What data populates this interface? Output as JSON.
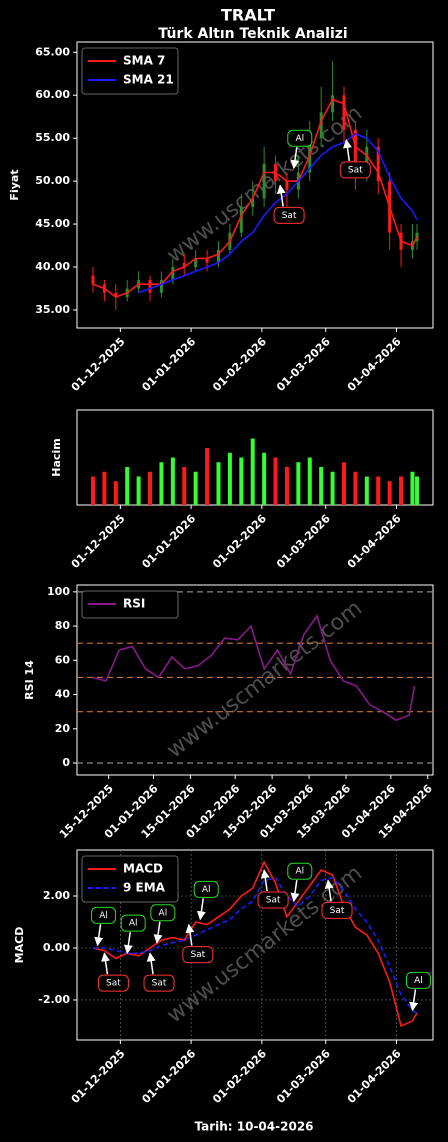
{
  "title": "TRALT",
  "subtitle": "Türk Altın Teknik Analizi",
  "footer": "Tarih: 10-04-2026",
  "watermark": "www.uscmarkets.com",
  "chart_data": [
    {
      "type": "candlestick",
      "y_label": "Fiyat",
      "legend": "upper left",
      "grid": false,
      "watermark": true,
      "up_color": "#2e8b2e",
      "down_color": "#ff1a1a",
      "x": [
        "19-11-2025",
        "24-11-2025",
        "29-11-2025",
        "04-12-2025",
        "09-12-2025",
        "14-12-2025",
        "19-12-2025",
        "24-12-2025",
        "29-12-2025",
        "03-01-2026",
        "08-01-2026",
        "13-01-2026",
        "18-01-2026",
        "23-01-2026",
        "28-01-2026",
        "02-02-2026",
        "07-02-2026",
        "12-02-2026",
        "17-02-2026",
        "22-02-2026",
        "27-02-2026",
        "04-03-2026",
        "09-03-2026",
        "14-03-2026",
        "19-03-2026",
        "24-03-2026",
        "29-03-2026",
        "03-04-2026",
        "08-04-2026",
        "10-04-2026"
      ],
      "open": [
        39,
        38,
        37,
        36.5,
        37.5,
        38.5,
        37,
        38.5,
        40.5,
        40,
        41,
        40.5,
        42,
        44,
        47,
        48,
        52,
        50,
        49,
        51,
        55,
        58,
        60,
        56,
        51,
        54,
        50,
        44,
        42,
        43
      ],
      "high": [
        40,
        38.5,
        38,
        38.5,
        39.5,
        39,
        39.5,
        41,
        41.5,
        42,
        42,
        43,
        45,
        48.5,
        50,
        54,
        53,
        51,
        53,
        57,
        61,
        64,
        61,
        57,
        56,
        55,
        51,
        45,
        45,
        45
      ],
      "low": [
        37,
        36,
        35,
        36,
        37,
        36,
        36.5,
        38,
        39,
        39.5,
        39.5,
        40,
        41.5,
        43.5,
        46,
        47,
        48.5,
        47,
        48,
        50,
        54,
        57,
        54.5,
        49,
        50,
        48.5,
        42,
        40,
        41,
        42
      ],
      "close": [
        38,
        37,
        36.5,
        37.5,
        38.5,
        37,
        38.5,
        40,
        40,
        41,
        40.5,
        42,
        44,
        47,
        48,
        52,
        50,
        49,
        51,
        55,
        58,
        60,
        56,
        51,
        54,
        50,
        44,
        42,
        43,
        44
      ],
      "series": [
        {
          "name": "SMA 7",
          "color": "#ff1a1a",
          "values": [
            38,
            37.5,
            36.5,
            37,
            38,
            38,
            38,
            39.5,
            40,
            41,
            41,
            41.5,
            43,
            46,
            48,
            51,
            51,
            50,
            50,
            53,
            57,
            59.5,
            59,
            54,
            53,
            51,
            47,
            43,
            42.5,
            43.5
          ]
        },
        {
          "name": "SMA 21",
          "color": "#1a1aff",
          "values": [
            null,
            null,
            null,
            null,
            37,
            37.5,
            38,
            38.5,
            39,
            39.5,
            40,
            40.5,
            41.5,
            43,
            44,
            46,
            47.5,
            48.5,
            50,
            51.5,
            53,
            54,
            54.5,
            55.5,
            55,
            53.5,
            50.5,
            48,
            46.5,
            45.5
          ]
        }
      ],
      "annotations": [
        {
          "text": "Al",
          "x": "15-02-2026",
          "y": 51.5,
          "side": "above",
          "color": "#22dd22"
        },
        {
          "text": "Sat",
          "x": "09-02-2026",
          "y": 49.5,
          "side": "below",
          "color": "#ff3333"
        },
        {
          "text": "Sat",
          "x": "10-03-2026",
          "y": 54.8,
          "side": "below",
          "color": "#ff3333"
        }
      ],
      "xlim": [
        "12-11-2025",
        "17-04-2026"
      ],
      "xticks": [
        "01-12-2025",
        "01-01-2026",
        "01-02-2026",
        "01-03-2026",
        "01-04-2026"
      ],
      "ylim": [
        32.9,
        66.2
      ],
      "yticks": [
        {
          "value": 35,
          "label": "35.00"
        },
        {
          "value": 40,
          "label": "40.00"
        },
        {
          "value": 45,
          "label": "45.00"
        },
        {
          "value": 50,
          "label": "50.00"
        },
        {
          "value": 55,
          "label": "55.00"
        },
        {
          "value": 60,
          "label": "60.00"
        },
        {
          "value": 65,
          "label": "65.00"
        }
      ]
    },
    {
      "type": "bar",
      "y_label": "Hacim",
      "grid": false,
      "watermark": false,
      "up_color": "#33ff33",
      "down_color": "#ff1a1a",
      "x": [
        "19-11-2025",
        "24-11-2025",
        "29-11-2025",
        "04-12-2025",
        "09-12-2025",
        "14-12-2025",
        "19-12-2025",
        "24-12-2025",
        "29-12-2025",
        "03-01-2026",
        "08-01-2026",
        "13-01-2026",
        "18-01-2026",
        "23-01-2026",
        "28-01-2026",
        "02-02-2026",
        "07-02-2026",
        "12-02-2026",
        "17-02-2026",
        "22-02-2026",
        "27-02-2026",
        "04-03-2026",
        "09-03-2026",
        "14-03-2026",
        "19-03-2026",
        "24-03-2026",
        "29-03-2026",
        "03-04-2026",
        "08-04-2026",
        "10-04-2026"
      ],
      "values": [
        30,
        35,
        25,
        40,
        30,
        35,
        45,
        50,
        40,
        35,
        60,
        45,
        55,
        50,
        70,
        55,
        50,
        40,
        45,
        50,
        40,
        35,
        45,
        35,
        30,
        30,
        25,
        30,
        35,
        30
      ],
      "xlim": [
        "12-11-2025",
        "17-04-2026"
      ],
      "xticks": [
        "01-12-2025",
        "01-01-2026",
        "01-02-2026",
        "01-03-2026",
        "01-04-2026"
      ],
      "ylim": [
        0,
        100
      ]
    },
    {
      "type": "line",
      "y_label": "RSI 14",
      "legend": "upper left",
      "grid": false,
      "watermark": true,
      "x": [
        "09-12-2025",
        "14-12-2025",
        "19-12-2025",
        "24-12-2025",
        "29-12-2025",
        "03-01-2026",
        "08-01-2026",
        "13-01-2026",
        "18-01-2026",
        "23-01-2026",
        "28-01-2026",
        "02-02-2026",
        "07-02-2026",
        "12-02-2026",
        "17-02-2026",
        "22-02-2026",
        "27-02-2026",
        "04-03-2026",
        "09-03-2026",
        "14-03-2026",
        "19-03-2026",
        "24-03-2026",
        "29-03-2026",
        "03-04-2026",
        "08-04-2026",
        "10-04-2026"
      ],
      "series": [
        {
          "name": "RSI",
          "color": "#8a1a8a",
          "values": [
            50,
            48,
            66,
            68,
            55,
            50,
            62,
            55,
            57,
            63,
            73,
            72,
            80,
            55,
            66,
            52,
            75,
            86,
            60,
            48,
            45,
            34,
            30,
            25,
            28,
            45
          ]
        }
      ],
      "reference_lines": [
        {
          "value": 0,
          "color": "#888888"
        },
        {
          "value": 30,
          "color": "#c87533"
        },
        {
          "value": 50,
          "color": "#c87533"
        },
        {
          "value": 70,
          "color": "#c87533"
        },
        {
          "value": 100,
          "color": "#888888"
        }
      ],
      "xlim": [
        "03-12-2025",
        "17-04-2026"
      ],
      "xticks": [
        "15-12-2025",
        "01-01-2026",
        "15-01-2026",
        "01-02-2026",
        "15-02-2026",
        "01-03-2026",
        "15-03-2026",
        "01-04-2026",
        "15-04-2026"
      ],
      "ylim": [
        -7,
        104
      ],
      "yticks": [
        0,
        20,
        40,
        60,
        80,
        100
      ]
    },
    {
      "type": "line",
      "y_label": "MACD",
      "legend": "upper left",
      "grid": true,
      "watermark": true,
      "x": [
        "19-11-2025",
        "24-11-2025",
        "29-11-2025",
        "04-12-2025",
        "09-12-2025",
        "14-12-2025",
        "19-12-2025",
        "24-12-2025",
        "29-12-2025",
        "03-01-2026",
        "08-01-2026",
        "13-01-2026",
        "18-01-2026",
        "23-01-2026",
        "28-01-2026",
        "02-02-2026",
        "07-02-2026",
        "12-02-2026",
        "17-02-2026",
        "22-02-2026",
        "27-02-2026",
        "04-03-2026",
        "09-03-2026",
        "14-03-2026",
        "19-03-2026",
        "24-03-2026",
        "29-03-2026",
        "03-04-2026",
        "08-04-2026",
        "10-04-2026"
      ],
      "series": [
        {
          "name": "MACD",
          "color": "#ff1a1a",
          "values": [
            0,
            -0.1,
            -0.4,
            -0.2,
            -0.3,
            0,
            0.3,
            0.4,
            0.3,
            1,
            0.9,
            1.2,
            1.5,
            2,
            2.3,
            3.3,
            2.5,
            1.2,
            1.8,
            2.4,
            3,
            2.8,
            1.6,
            0.8,
            0.5,
            -0.2,
            -1.3,
            -3,
            -2.8,
            -2.5
          ]
        },
        {
          "name": "9 EMA",
          "color": "#1a1aff",
          "dashed": true,
          "values": [
            0,
            0,
            -0.1,
            -0.2,
            -0.2,
            -0.1,
            0.1,
            0.2,
            0.3,
            0.5,
            0.7,
            0.9,
            1.1,
            1.5,
            1.8,
            2.6,
            2.7,
            2,
            1.6,
            2,
            2.6,
            2.7,
            2.2,
            1.5,
            1,
            0.3,
            -0.7,
            -1.8,
            -2.4,
            -2.5
          ]
        }
      ],
      "annotations": [
        {
          "text": "Al",
          "x": "21-11-2025",
          "y": 0.1,
          "side": "above",
          "color": "#22dd22"
        },
        {
          "text": "Sat",
          "x": "24-11-2025",
          "y": -0.2,
          "side": "below",
          "color": "#ff3333"
        },
        {
          "text": "Al",
          "x": "04-12-2025",
          "y": -0.2,
          "side": "above",
          "color": "#22dd22"
        },
        {
          "text": "Sat",
          "x": "14-12-2025",
          "y": -0.2,
          "side": "below",
          "color": "#ff3333"
        },
        {
          "text": "Al",
          "x": "17-12-2025",
          "y": 0.2,
          "side": "above",
          "color": "#22dd22"
        },
        {
          "text": "Sat",
          "x": "31-12-2025",
          "y": 0.9,
          "side": "below",
          "color": "#ff3333"
        },
        {
          "text": "Al",
          "x": "05-01-2026",
          "y": 1.1,
          "side": "above",
          "color": "#22dd22"
        },
        {
          "text": "Sat",
          "x": "02-02-2026",
          "y": 3.0,
          "side": "below",
          "color": "#ff3333"
        },
        {
          "text": "Al",
          "x": "15-02-2026",
          "y": 1.8,
          "side": "above",
          "color": "#22dd22"
        },
        {
          "text": "Sat",
          "x": "02-03-2026",
          "y": 2.6,
          "side": "below",
          "color": "#ff3333"
        },
        {
          "text": "Al",
          "x": "08-04-2026",
          "y": -2.4,
          "side": "above",
          "color": "#22dd22"
        }
      ],
      "xlim": [
        "12-11-2025",
        "17-04-2026"
      ],
      "xticks": [
        "01-12-2025",
        "01-01-2026",
        "01-02-2026",
        "01-03-2026",
        "01-04-2026"
      ],
      "ylim": [
        -3.54,
        3.77
      ],
      "yticks": [
        {
          "value": -2,
          "label": "-2.00"
        },
        {
          "value": 0,
          "label": "0.00"
        },
        {
          "value": 2,
          "label": "2.00"
        }
      ]
    }
  ]
}
